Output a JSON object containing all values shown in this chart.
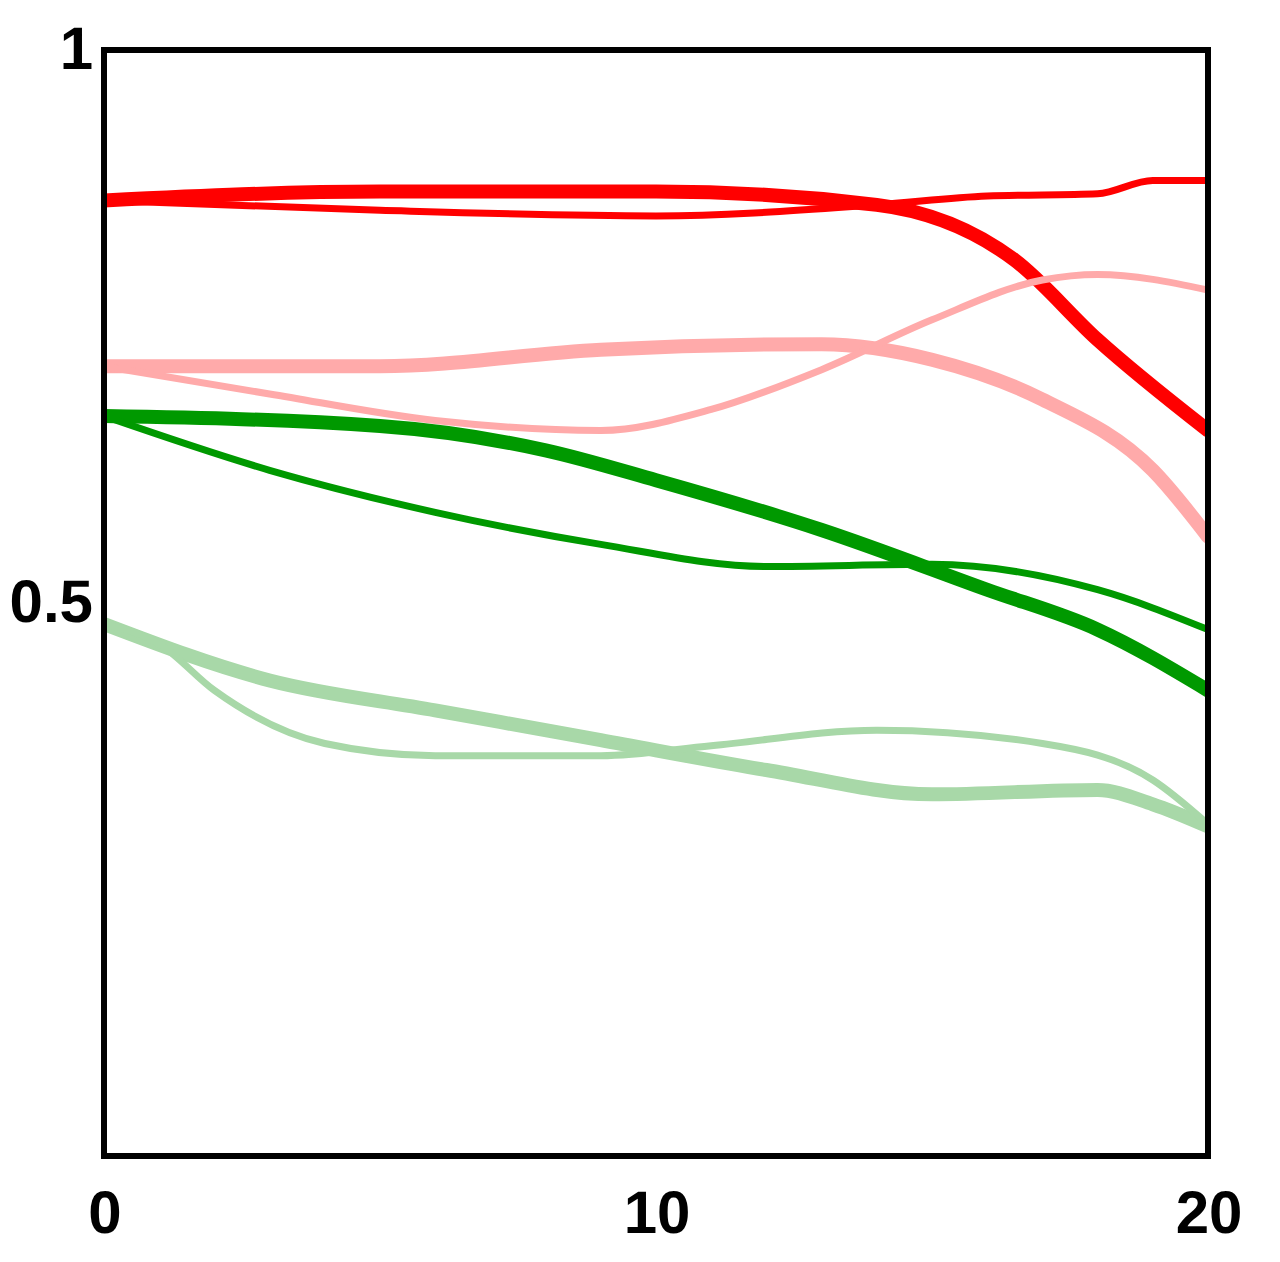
{
  "chart_data": {
    "type": "line",
    "xlim": [
      0,
      20
    ],
    "xticks": [
      0,
      10,
      20
    ],
    "ylim": [
      0,
      1
    ],
    "yticks": [
      0.5,
      1
    ],
    "grid": false,
    "marker": "none",
    "line_style": "solid",
    "series": [
      {
        "color": "#ff0000",
        "x": [
          0,
          5,
          10,
          14,
          16.5,
          18,
          20
        ],
        "values": [
          0.864,
          0.872,
          0.872,
          0.86,
          0.81,
          0.738,
          0.656
        ]
      },
      {
        "color": "#ff0000",
        "x": [
          0,
          5,
          10,
          14,
          16,
          18,
          19,
          20
        ],
        "values": [
          0.864,
          0.855,
          0.85,
          0.86,
          0.868,
          0.87,
          0.882,
          0.882
        ]
      },
      {
        "color": "#ffaaaa",
        "x": [
          0,
          5,
          9,
          13,
          15,
          17,
          19,
          20
        ],
        "values": [
          0.714,
          0.714,
          0.729,
          0.734,
          0.72,
          0.684,
          0.62,
          0.56
        ]
      },
      {
        "color": "#ffaaaa",
        "x": [
          0,
          3,
          6,
          9,
          11,
          13,
          15,
          17,
          18,
          20
        ],
        "values": [
          0.714,
          0.689,
          0.665,
          0.656,
          0.675,
          0.711,
          0.756,
          0.792,
          0.797,
          0.783
        ]
      },
      {
        "color": "#009900",
        "x": [
          0,
          5,
          8,
          10,
          13,
          16,
          18,
          20
        ],
        "values": [
          0.669,
          0.66,
          0.638,
          0.611,
          0.566,
          0.512,
          0.476,
          0.421
        ]
      },
      {
        "color": "#009900",
        "x": [
          0,
          3,
          6,
          9,
          12,
          15,
          18,
          20
        ],
        "values": [
          0.669,
          0.62,
          0.582,
          0.553,
          0.533,
          0.535,
          0.512,
          0.476
        ]
      },
      {
        "color": "#a8d8a8",
        "x": [
          0,
          3,
          6,
          9,
          12,
          15,
          18,
          19,
          20
        ],
        "values": [
          0.481,
          0.43,
          0.403,
          0.376,
          0.349,
          0.327,
          0.331,
          0.318,
          0.298
        ]
      },
      {
        "color": "#a8d8a8",
        "x": [
          0,
          1,
          2,
          4,
          6,
          9,
          11,
          14,
          17,
          19,
          20
        ],
        "values": [
          0.481,
          0.463,
          0.421,
          0.373,
          0.362,
          0.362,
          0.371,
          0.385,
          0.373,
          0.34,
          0.3
        ]
      }
    ]
  }
}
